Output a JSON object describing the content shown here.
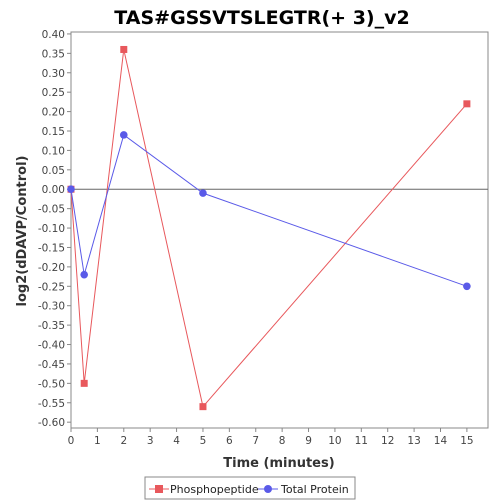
{
  "chart_data": {
    "type": "line",
    "title": "TAS#GSSVTSLEGTR(+ 3)_v2",
    "xlabel": "Time (minutes)",
    "ylabel": "log2(dDAVP/Control)",
    "xlim": [
      0,
      15.8
    ],
    "ylim": [
      -0.615,
      0.405
    ],
    "x_ticks": [
      "0",
      "1",
      "2",
      "3",
      "4",
      "5",
      "6",
      "7",
      "8",
      "9",
      "10",
      "11",
      "12",
      "13",
      "14",
      "15"
    ],
    "y_ticks": [
      "0.40",
      "0.35",
      "0.30",
      "0.25",
      "0.20",
      "0.15",
      "0.10",
      "0.05",
      "0.00",
      "-0.05",
      "-0.10",
      "-0.15",
      "-0.20",
      "-0.25",
      "-0.30",
      "-0.35",
      "-0.40",
      "-0.45",
      "-0.50",
      "-0.55",
      "-0.60"
    ],
    "grid": false,
    "zero_line": true,
    "legend_position": "bottom",
    "series": [
      {
        "name": "Phosphopeptide",
        "color": "#e8585c",
        "marker": "square",
        "x": [
          0,
          0.5,
          2,
          5,
          15
        ],
        "y": [
          0.0,
          -0.5,
          0.36,
          -0.56,
          0.22
        ]
      },
      {
        "name": "Total Protein",
        "color": "#5a5ae8",
        "marker": "circle",
        "x": [
          0,
          0.5,
          2,
          5,
          15
        ],
        "y": [
          0.0,
          -0.22,
          0.14,
          -0.01,
          -0.25
        ]
      }
    ]
  }
}
